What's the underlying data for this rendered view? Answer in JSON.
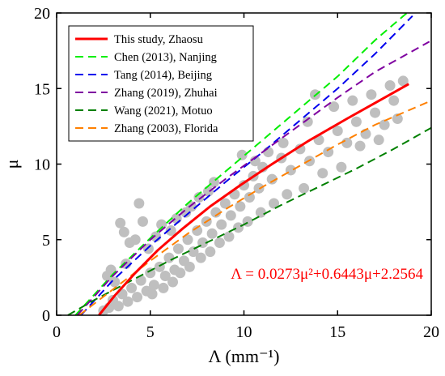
{
  "chart_data": {
    "type": "scatter",
    "xlabel": "Λ (mm⁻¹)",
    "ylabel": "μ",
    "xlim": [
      0,
      20
    ],
    "ylim": [
      0,
      20
    ],
    "xticks": [
      0,
      5,
      10,
      15,
      20
    ],
    "yticks": [
      0,
      5,
      10,
      15,
      20
    ],
    "xtick_labels": [
      "0",
      "5",
      "10",
      "15",
      "20"
    ],
    "ytick_labels": [
      "0",
      "5",
      "10",
      "15",
      "20"
    ],
    "grid": false,
    "legend_position": "top-left",
    "equation": {
      "text": "Λ = 0.0273μ²+0.6443μ+2.2564",
      "color": "#ff0000"
    },
    "series": [
      {
        "name": "This study, Zhaosu",
        "style": "solid",
        "color": "#ff0000",
        "x": [
          2.26,
          3.1,
          4.2,
          5.4,
          6.7,
          8.2,
          9.8,
          11.5,
          13.4,
          15.5,
          17.8,
          18.8
        ],
        "y": [
          0,
          1.3,
          2.8,
          4.3,
          5.7,
          7.2,
          8.6,
          10.0,
          11.5,
          13.0,
          14.6,
          15.3
        ]
      },
      {
        "name": "Chen (2013), Nanjing",
        "style": "dashed",
        "color": "#00ee00",
        "x": [
          1.0,
          3.0,
          5.0,
          7.0,
          9.0,
          11.0,
          13.0,
          15.0,
          17.0,
          18.7
        ],
        "y": [
          0,
          2.7,
          5.1,
          7.4,
          9.5,
          11.6,
          13.7,
          15.8,
          18.2,
          20.0
        ]
      },
      {
        "name": "Tang (2014), Beijing",
        "style": "dashed",
        "color": "#0000ee",
        "x": [
          1.3,
          3.0,
          5.0,
          7.0,
          9.0,
          11.0,
          13.0,
          15.0,
          17.0,
          19.0
        ],
        "y": [
          0,
          2.3,
          4.6,
          6.7,
          8.8,
          10.8,
          12.9,
          15.0,
          17.3,
          19.8
        ]
      },
      {
        "name": "Zhang (2019), Zhuhai",
        "style": "dashed",
        "color": "#7f00a0",
        "x": [
          1.1,
          3.0,
          5.0,
          7.0,
          9.0,
          11.0,
          13.0,
          15.0,
          17.0,
          19.9
        ],
        "y": [
          0,
          2.6,
          5.0,
          7.1,
          9.0,
          10.8,
          12.6,
          14.4,
          16.1,
          18.1
        ]
      },
      {
        "name": "Wang (2021), Motuo",
        "style": "dashed",
        "color": "#008000",
        "x": [
          0.6,
          2.0,
          4.0,
          6.0,
          8.0,
          10.0,
          12.0,
          14.0,
          16.0,
          18.0,
          20.0
        ],
        "y": [
          0,
          1.0,
          2.3,
          3.6,
          4.8,
          6.0,
          7.3,
          8.5,
          9.7,
          11.0,
          12.4
        ]
      },
      {
        "name": "Zhang (2003), Florida",
        "style": "dashed",
        "color": "#ff8000",
        "x": [
          1.2,
          3.0,
          5.0,
          7.0,
          9.0,
          11.0,
          13.0,
          15.0,
          17.0,
          20.0
        ],
        "y": [
          0,
          1.7,
          3.6,
          5.4,
          7.0,
          8.5,
          9.9,
          11.3,
          12.6,
          14.2
        ]
      }
    ],
    "scatter": {
      "color": "#bfbfbf",
      "points": [
        [
          2.5,
          0.3
        ],
        [
          2.8,
          0.5
        ],
        [
          3.0,
          1.0
        ],
        [
          3.3,
          0.6
        ],
        [
          3.5,
          1.4
        ],
        [
          3.8,
          0.9
        ],
        [
          4.0,
          1.8
        ],
        [
          4.3,
          1.2
        ],
        [
          4.5,
          2.3
        ],
        [
          4.8,
          1.6
        ],
        [
          5.0,
          2.8
        ],
        [
          5.2,
          2.0
        ],
        [
          5.5,
          3.2
        ],
        [
          5.8,
          2.6
        ],
        [
          6.0,
          3.8
        ],
        [
          6.3,
          3.0
        ],
        [
          6.5,
          4.4
        ],
        [
          6.8,
          3.6
        ],
        [
          7.0,
          5.0
        ],
        [
          7.3,
          4.2
        ],
        [
          7.5,
          5.6
        ],
        [
          7.8,
          4.8
        ],
        [
          8.0,
          6.2
        ],
        [
          8.3,
          5.4
        ],
        [
          8.5,
          6.8
        ],
        [
          8.8,
          6.0
        ],
        [
          9.0,
          7.4
        ],
        [
          9.3,
          6.6
        ],
        [
          9.5,
          8.0
        ],
        [
          9.8,
          7.2
        ],
        [
          10.0,
          8.6
        ],
        [
          10.3,
          7.8
        ],
        [
          10.5,
          9.2
        ],
        [
          10.8,
          8.4
        ],
        [
          11.0,
          9.8
        ],
        [
          11.5,
          9.0
        ],
        [
          12.0,
          10.4
        ],
        [
          12.5,
          9.6
        ],
        [
          13.0,
          11.0
        ],
        [
          13.5,
          10.2
        ],
        [
          14.0,
          11.6
        ],
        [
          14.5,
          10.8
        ],
        [
          15.0,
          12.2
        ],
        [
          15.5,
          11.4
        ],
        [
          16.0,
          12.8
        ],
        [
          16.5,
          12.0
        ],
        [
          17.0,
          13.4
        ],
        [
          17.5,
          12.6
        ],
        [
          18.0,
          14.2
        ],
        [
          18.5,
          15.5
        ],
        [
          3.4,
          6.1
        ],
        [
          3.6,
          5.5
        ],
        [
          4.2,
          5.0
        ],
        [
          4.6,
          6.2
        ],
        [
          4.4,
          7.4
        ],
        [
          3.9,
          4.8
        ],
        [
          2.9,
          3.0
        ],
        [
          3.1,
          2.2
        ],
        [
          2.7,
          2.6
        ],
        [
          3.7,
          3.4
        ],
        [
          4.9,
          4.4
        ],
        [
          5.3,
          5.2
        ],
        [
          5.6,
          6.0
        ],
        [
          6.1,
          5.6
        ],
        [
          6.4,
          6.4
        ],
        [
          6.9,
          6.8
        ],
        [
          7.2,
          7.2
        ],
        [
          7.6,
          7.8
        ],
        [
          8.1,
          8.2
        ],
        [
          8.4,
          8.8
        ],
        [
          5.1,
          1.4
        ],
        [
          5.7,
          1.8
        ],
        [
          6.2,
          2.2
        ],
        [
          6.6,
          2.8
        ],
        [
          7.1,
          3.2
        ],
        [
          7.7,
          3.8
        ],
        [
          8.2,
          4.2
        ],
        [
          8.7,
          4.8
        ],
        [
          9.2,
          5.2
        ],
        [
          9.7,
          5.8
        ],
        [
          10.2,
          6.2
        ],
        [
          10.9,
          6.8
        ],
        [
          11.6,
          7.4
        ],
        [
          12.3,
          8.0
        ],
        [
          13.2,
          8.4
        ],
        [
          14.2,
          9.4
        ],
        [
          15.2,
          9.8
        ],
        [
          16.2,
          11.2
        ],
        [
          17.2,
          11.6
        ],
        [
          18.2,
          13.0
        ],
        [
          10.6,
          10.2
        ],
        [
          11.3,
          10.8
        ],
        [
          12.1,
          11.4
        ],
        [
          13.4,
          12.8
        ],
        [
          14.8,
          13.8
        ],
        [
          15.8,
          14.2
        ],
        [
          16.8,
          14.6
        ],
        [
          17.8,
          15.2
        ],
        [
          13.8,
          14.6
        ],
        [
          9.9,
          10.6
        ]
      ]
    }
  }
}
